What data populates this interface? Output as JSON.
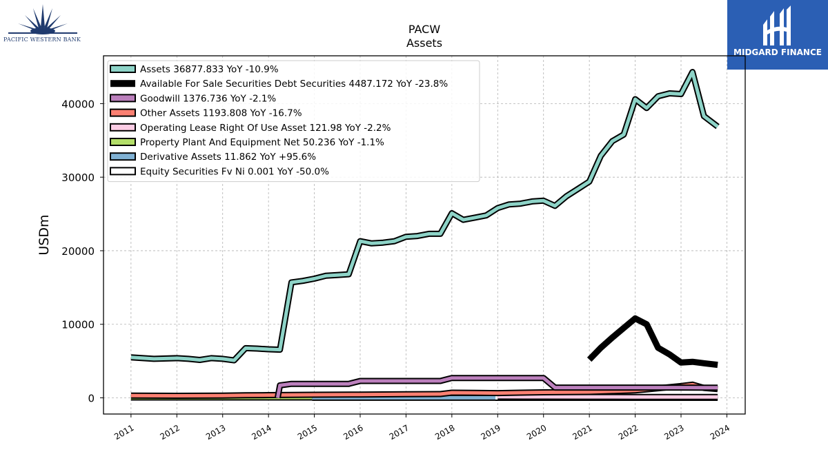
{
  "logos": {
    "left_text": "PACIFIC WESTERN BANK",
    "right_text": "MIDGARD FINANCE"
  },
  "chart_data": {
    "type": "line",
    "title": "PACW",
    "subtitle": "Assets",
    "ylabel": "USDm",
    "xlabel": "",
    "xlim": [
      2010.4,
      2024.4
    ],
    "ylim": [
      -2200,
      46500
    ],
    "xticks": [
      2011,
      2012,
      2013,
      2014,
      2015,
      2016,
      2017,
      2018,
      2019,
      2020,
      2021,
      2022,
      2023,
      2024
    ],
    "yticks": [
      0,
      10000,
      20000,
      30000,
      40000
    ],
    "grid": true,
    "legend_position": "top-left",
    "series": [
      {
        "name": "Assets  36877.833 YoY -10.9%",
        "color": "#8dd3c7",
        "style": "outlined",
        "points": [
          [
            2011.0,
            5500
          ],
          [
            2011.5,
            5300
          ],
          [
            2012.0,
            5400
          ],
          [
            2012.25,
            5300
          ],
          [
            2012.5,
            5150
          ],
          [
            2012.75,
            5400
          ],
          [
            2013.0,
            5300
          ],
          [
            2013.25,
            5100
          ],
          [
            2013.5,
            6750
          ],
          [
            2013.75,
            6700
          ],
          [
            2014.0,
            6600
          ],
          [
            2014.25,
            6550
          ],
          [
            2014.5,
            15700
          ],
          [
            2014.75,
            15900
          ],
          [
            2015.0,
            16200
          ],
          [
            2015.25,
            16600
          ],
          [
            2015.5,
            16700
          ],
          [
            2015.75,
            16800
          ],
          [
            2016.0,
            21300
          ],
          [
            2016.25,
            21000
          ],
          [
            2016.5,
            21100
          ],
          [
            2016.75,
            21300
          ],
          [
            2017.0,
            21900
          ],
          [
            2017.25,
            22000
          ],
          [
            2017.5,
            22300
          ],
          [
            2017.75,
            22300
          ],
          [
            2018.0,
            25100
          ],
          [
            2018.25,
            24200
          ],
          [
            2018.5,
            24500
          ],
          [
            2018.75,
            24800
          ],
          [
            2019.0,
            25800
          ],
          [
            2019.25,
            26300
          ],
          [
            2019.5,
            26400
          ],
          [
            2019.75,
            26700
          ],
          [
            2020.0,
            26800
          ],
          [
            2020.25,
            26100
          ],
          [
            2020.5,
            27400
          ],
          [
            2020.75,
            28400
          ],
          [
            2021.0,
            29400
          ],
          [
            2021.25,
            32900
          ],
          [
            2021.5,
            34900
          ],
          [
            2021.75,
            35800
          ],
          [
            2022.0,
            40600
          ],
          [
            2022.25,
            39400
          ],
          [
            2022.5,
            41000
          ],
          [
            2022.75,
            41400
          ],
          [
            2023.0,
            41300
          ],
          [
            2023.25,
            44300
          ],
          [
            2023.5,
            38300
          ],
          [
            2023.8,
            36878
          ]
        ]
      },
      {
        "name": "Available For Sale Securities Debt Securities  4487.172 YoY -23.8%",
        "color": "#000000",
        "style": "solid",
        "points": [
          [
            2021.0,
            5200
          ],
          [
            2021.25,
            6800
          ],
          [
            2021.5,
            8200
          ],
          [
            2021.75,
            9500
          ],
          [
            2022.0,
            10800
          ],
          [
            2022.25,
            10000
          ],
          [
            2022.5,
            6800
          ],
          [
            2022.75,
            5900
          ],
          [
            2023.0,
            4800
          ],
          [
            2023.25,
            4900
          ],
          [
            2023.5,
            4700
          ],
          [
            2023.8,
            4487
          ]
        ]
      },
      {
        "name": "Goodwill  1376.736 YoY -2.1%",
        "color": "#bc80bd",
        "style": "outlined",
        "points": [
          [
            2014.2,
            0
          ],
          [
            2014.25,
            1700
          ],
          [
            2014.5,
            1900
          ],
          [
            2015.0,
            1900
          ],
          [
            2015.5,
            1900
          ],
          [
            2015.75,
            1900
          ],
          [
            2016.0,
            2300
          ],
          [
            2016.5,
            2300
          ],
          [
            2017.0,
            2300
          ],
          [
            2017.75,
            2300
          ],
          [
            2018.0,
            2700
          ],
          [
            2018.5,
            2700
          ],
          [
            2019.0,
            2700
          ],
          [
            2019.5,
            2700
          ],
          [
            2020.0,
            2700
          ],
          [
            2020.25,
            1400
          ],
          [
            2021.0,
            1400
          ],
          [
            2021.25,
            1400
          ],
          [
            2021.75,
            1400
          ],
          [
            2022.0,
            1400
          ],
          [
            2022.5,
            1400
          ],
          [
            2023.0,
            1400
          ],
          [
            2023.8,
            1377
          ]
        ]
      },
      {
        "name": "Other Assets  1193.808 YoY -16.7%",
        "color": "#fb8072",
        "style": "outlined",
        "points": [
          [
            2011.0,
            300
          ],
          [
            2012.0,
            280
          ],
          [
            2013.0,
            300
          ],
          [
            2013.5,
            350
          ],
          [
            2014.0,
            380
          ],
          [
            2014.5,
            400
          ],
          [
            2015.0,
            420
          ],
          [
            2016.0,
            450
          ],
          [
            2017.0,
            500
          ],
          [
            2017.75,
            520
          ],
          [
            2018.0,
            700
          ],
          [
            2018.5,
            680
          ],
          [
            2019.0,
            650
          ],
          [
            2019.5,
            700
          ],
          [
            2020.0,
            750
          ],
          [
            2020.5,
            780
          ],
          [
            2021.0,
            800
          ],
          [
            2021.5,
            900
          ],
          [
            2022.0,
            1000
          ],
          [
            2022.5,
            1300
          ],
          [
            2023.0,
            1600
          ],
          [
            2023.25,
            1800
          ],
          [
            2023.5,
            1350
          ],
          [
            2023.8,
            1194
          ]
        ]
      },
      {
        "name": "Operating Lease Right Of Use Asset  121.98 YoY -2.2%",
        "color": "#fccde5",
        "style": "outlined",
        "points": [
          [
            2019.0,
            150
          ],
          [
            2020.0,
            140
          ],
          [
            2021.0,
            130
          ],
          [
            2022.0,
            125
          ],
          [
            2023.0,
            124
          ],
          [
            2023.8,
            122
          ]
        ]
      },
      {
        "name": "Property Plant And Equipment Net  50.236 YoY -1.1%",
        "color": "#b3de69",
        "style": "outlined",
        "points": [
          [
            2011.0,
            50
          ],
          [
            2012.0,
            50
          ],
          [
            2013.0,
            50
          ],
          [
            2014.0,
            50
          ],
          [
            2014.95,
            50
          ]
        ]
      },
      {
        "name": "Derivative Assets  11.862 YoY +95.6%",
        "color": "#80b1d3",
        "style": "outlined",
        "points": [
          [
            2014.95,
            12
          ],
          [
            2016.0,
            12
          ],
          [
            2017.0,
            12
          ],
          [
            2018.0,
            12
          ],
          [
            2018.95,
            12
          ]
        ]
      },
      {
        "name": "Equity Securities Fv Ni  0.001 YoY -50.0%",
        "color": "#ffffff",
        "style": "outlined",
        "points": [
          [
            2018.95,
            0
          ],
          [
            2020.0,
            0
          ],
          [
            2021.0,
            0
          ],
          [
            2022.0,
            0
          ],
          [
            2023.0,
            0
          ],
          [
            2023.8,
            0
          ]
        ]
      }
    ]
  }
}
